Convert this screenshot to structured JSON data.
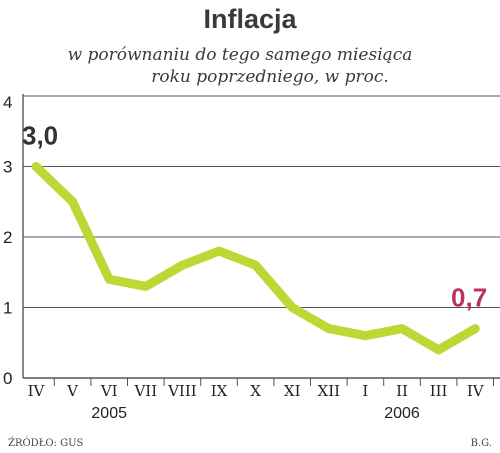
{
  "chart_data": {
    "type": "line",
    "title": "Inflacja",
    "subtitle_lines": [
      "w porównaniu do tego samego miesiąca",
      "roku poprzedniego, w proc."
    ],
    "categories": [
      "IV",
      "V",
      "VI",
      "VII",
      "VIII",
      "IX",
      "X",
      "XI",
      "XII",
      "I",
      "II",
      "III",
      "IV"
    ],
    "year_labels": [
      {
        "text": "2005",
        "category_index": 2
      },
      {
        "text": "2006",
        "category_index": 10
      }
    ],
    "series": [
      {
        "values": [
          3.0,
          2.5,
          1.4,
          1.3,
          1.6,
          1.8,
          1.6,
          1.0,
          0.7,
          0.6,
          0.7,
          0.4,
          0.7
        ],
        "color": "#bdd834"
      }
    ],
    "annotations": [
      {
        "text": "3,0",
        "point_index": 0,
        "color": "#333333"
      },
      {
        "text": "0,7",
        "point_index": 12,
        "color": "#b8345f"
      }
    ],
    "yticks": [
      "0",
      "1",
      "2",
      "3",
      "4"
    ],
    "ylim": [
      0,
      4
    ],
    "grid": true,
    "xlabel": "",
    "ylabel": ""
  },
  "footer": {
    "source": "ŹRÓDŁO: GUS",
    "author": "B.G."
  }
}
